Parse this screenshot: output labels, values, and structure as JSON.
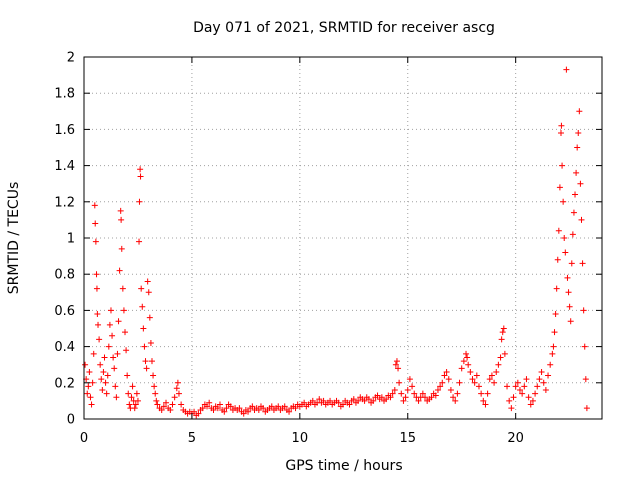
{
  "chart_data": {
    "type": "scatter",
    "title": "Day 071 of 2021, SRMTID for receiver ascg",
    "xlabel": "GPS time / hours",
    "ylabel": "SRMTID / TECUs",
    "xlim": [
      0,
      24
    ],
    "ylim": [
      0,
      2
    ],
    "xticks": [
      0,
      5,
      10,
      15,
      20
    ],
    "yticks": [
      0,
      0.2,
      0.4,
      0.6,
      0.8,
      1,
      1.2,
      1.4,
      1.6,
      1.8,
      2
    ],
    "ytick_labels": [
      "0",
      "0.2",
      "0.4",
      "0.6",
      "0.8",
      "1",
      "1.2",
      "1.4",
      "1.6",
      "1.8",
      "2"
    ],
    "grid": true,
    "marker": "+",
    "series": [
      {
        "name": "SRMTID",
        "color": "#ff0000",
        "points": [
          [
            0.05,
            0.3
          ],
          [
            0.1,
            0.22
          ],
          [
            0.15,
            0.14
          ],
          [
            0.2,
            0.18
          ],
          [
            0.25,
            0.26
          ],
          [
            0.3,
            0.12
          ],
          [
            0.35,
            0.08
          ],
          [
            0.4,
            0.2
          ],
          [
            0.45,
            0.36
          ],
          [
            0.5,
            1.18
          ],
          [
            0.52,
            1.08
          ],
          [
            0.55,
            0.98
          ],
          [
            0.58,
            0.8
          ],
          [
            0.6,
            0.72
          ],
          [
            0.62,
            0.58
          ],
          [
            0.65,
            0.52
          ],
          [
            0.7,
            0.44
          ],
          [
            0.75,
            0.3
          ],
          [
            0.8,
            0.22
          ],
          [
            0.85,
            0.16
          ],
          [
            0.9,
            0.26
          ],
          [
            0.95,
            0.34
          ],
          [
            1.0,
            0.2
          ],
          [
            1.05,
            0.14
          ],
          [
            1.1,
            0.24
          ],
          [
            1.15,
            0.4
          ],
          [
            1.2,
            0.52
          ],
          [
            1.25,
            0.6
          ],
          [
            1.3,
            0.46
          ],
          [
            1.35,
            0.34
          ],
          [
            1.4,
            0.28
          ],
          [
            1.45,
            0.18
          ],
          [
            1.5,
            0.12
          ],
          [
            1.55,
            0.36
          ],
          [
            1.6,
            0.54
          ],
          [
            1.65,
            0.82
          ],
          [
            1.7,
            1.15
          ],
          [
            1.72,
            1.1
          ],
          [
            1.75,
            0.94
          ],
          [
            1.8,
            0.72
          ],
          [
            1.85,
            0.6
          ],
          [
            1.9,
            0.48
          ],
          [
            1.95,
            0.38
          ],
          [
            2.0,
            0.24
          ],
          [
            2.05,
            0.14
          ],
          [
            2.1,
            0.08
          ],
          [
            2.15,
            0.06
          ],
          [
            2.2,
            0.12
          ],
          [
            2.25,
            0.18
          ],
          [
            2.3,
            0.1
          ],
          [
            2.35,
            0.06
          ],
          [
            2.4,
            0.08
          ],
          [
            2.45,
            0.14
          ],
          [
            2.5,
            0.1
          ],
          [
            2.55,
            0.98
          ],
          [
            2.57,
            1.2
          ],
          [
            2.6,
            1.38
          ],
          [
            2.62,
            1.34
          ],
          [
            2.65,
            0.72
          ],
          [
            2.7,
            0.62
          ],
          [
            2.75,
            0.5
          ],
          [
            2.8,
            0.4
          ],
          [
            2.85,
            0.32
          ],
          [
            2.9,
            0.28
          ],
          [
            2.95,
            0.76
          ],
          [
            3.0,
            0.7
          ],
          [
            3.05,
            0.56
          ],
          [
            3.1,
            0.42
          ],
          [
            3.15,
            0.32
          ],
          [
            3.2,
            0.24
          ],
          [
            3.25,
            0.18
          ],
          [
            3.3,
            0.14
          ],
          [
            3.35,
            0.1
          ],
          [
            3.4,
            0.08
          ],
          [
            3.5,
            0.06
          ],
          [
            3.6,
            0.05
          ],
          [
            3.7,
            0.07
          ],
          [
            3.8,
            0.09
          ],
          [
            3.9,
            0.06
          ],
          [
            4.0,
            0.05
          ],
          [
            4.1,
            0.08
          ],
          [
            4.2,
            0.12
          ],
          [
            4.3,
            0.17
          ],
          [
            4.35,
            0.2
          ],
          [
            4.4,
            0.14
          ],
          [
            4.5,
            0.08
          ],
          [
            4.6,
            0.05
          ],
          [
            4.7,
            0.04
          ],
          [
            4.8,
            0.03
          ],
          [
            4.9,
            0.04
          ],
          [
            5.0,
            0.03
          ],
          [
            5.1,
            0.04
          ],
          [
            5.2,
            0.02
          ],
          [
            5.3,
            0.03
          ],
          [
            5.4,
            0.05
          ],
          [
            5.5,
            0.06
          ],
          [
            5.6,
            0.08
          ],
          [
            5.7,
            0.07
          ],
          [
            5.8,
            0.09
          ],
          [
            5.9,
            0.06
          ],
          [
            6.0,
            0.05
          ],
          [
            6.1,
            0.07
          ],
          [
            6.2,
            0.06
          ],
          [
            6.3,
            0.08
          ],
          [
            6.4,
            0.05
          ],
          [
            6.5,
            0.04
          ],
          [
            6.6,
            0.06
          ],
          [
            6.7,
            0.08
          ],
          [
            6.8,
            0.07
          ],
          [
            6.9,
            0.05
          ],
          [
            7.0,
            0.06
          ],
          [
            7.1,
            0.05
          ],
          [
            7.2,
            0.06
          ],
          [
            7.3,
            0.04
          ],
          [
            7.4,
            0.03
          ],
          [
            7.5,
            0.05
          ],
          [
            7.6,
            0.04
          ],
          [
            7.7,
            0.06
          ],
          [
            7.8,
            0.07
          ],
          [
            7.9,
            0.05
          ],
          [
            8.0,
            0.06
          ],
          [
            8.1,
            0.05
          ],
          [
            8.2,
            0.07
          ],
          [
            8.3,
            0.06
          ],
          [
            8.4,
            0.04
          ],
          [
            8.5,
            0.05
          ],
          [
            8.6,
            0.06
          ],
          [
            8.7,
            0.07
          ],
          [
            8.8,
            0.05
          ],
          [
            8.9,
            0.06
          ],
          [
            9.0,
            0.07
          ],
          [
            9.1,
            0.05
          ],
          [
            9.2,
            0.06
          ],
          [
            9.3,
            0.07
          ],
          [
            9.4,
            0.05
          ],
          [
            9.5,
            0.04
          ],
          [
            9.6,
            0.06
          ],
          [
            9.7,
            0.07
          ],
          [
            9.8,
            0.06
          ],
          [
            9.9,
            0.08
          ],
          [
            10.0,
            0.07
          ],
          [
            10.1,
            0.08
          ],
          [
            10.2,
            0.09
          ],
          [
            10.3,
            0.07
          ],
          [
            10.4,
            0.08
          ],
          [
            10.5,
            0.09
          ],
          [
            10.6,
            0.1
          ],
          [
            10.7,
            0.08
          ],
          [
            10.8,
            0.09
          ],
          [
            10.9,
            0.11
          ],
          [
            11.0,
            0.09
          ],
          [
            11.1,
            0.1
          ],
          [
            11.2,
            0.08
          ],
          [
            11.3,
            0.09
          ],
          [
            11.4,
            0.1
          ],
          [
            11.5,
            0.08
          ],
          [
            11.6,
            0.09
          ],
          [
            11.7,
            0.1
          ],
          [
            11.8,
            0.09
          ],
          [
            11.9,
            0.07
          ],
          [
            12.0,
            0.08
          ],
          [
            12.1,
            0.1
          ],
          [
            12.2,
            0.09
          ],
          [
            12.3,
            0.08
          ],
          [
            12.4,
            0.1
          ],
          [
            12.5,
            0.11
          ],
          [
            12.6,
            0.09
          ],
          [
            12.7,
            0.1
          ],
          [
            12.8,
            0.12
          ],
          [
            12.9,
            0.11
          ],
          [
            13.0,
            0.1
          ],
          [
            13.1,
            0.12
          ],
          [
            13.2,
            0.11
          ],
          [
            13.3,
            0.09
          ],
          [
            13.4,
            0.1
          ],
          [
            13.5,
            0.12
          ],
          [
            13.6,
            0.13
          ],
          [
            13.7,
            0.11
          ],
          [
            13.8,
            0.12
          ],
          [
            13.9,
            0.1
          ],
          [
            14.0,
            0.11
          ],
          [
            14.1,
            0.13
          ],
          [
            14.2,
            0.12
          ],
          [
            14.3,
            0.14
          ],
          [
            14.4,
            0.16
          ],
          [
            14.45,
            0.3
          ],
          [
            14.5,
            0.32
          ],
          [
            14.55,
            0.28
          ],
          [
            14.6,
            0.2
          ],
          [
            14.7,
            0.14
          ],
          [
            14.8,
            0.1
          ],
          [
            14.9,
            0.12
          ],
          [
            15.0,
            0.16
          ],
          [
            15.1,
            0.22
          ],
          [
            15.2,
            0.18
          ],
          [
            15.3,
            0.14
          ],
          [
            15.4,
            0.12
          ],
          [
            15.5,
            0.1
          ],
          [
            15.6,
            0.12
          ],
          [
            15.7,
            0.14
          ],
          [
            15.8,
            0.12
          ],
          [
            15.9,
            0.1
          ],
          [
            16.0,
            0.11
          ],
          [
            16.1,
            0.12
          ],
          [
            16.2,
            0.14
          ],
          [
            16.3,
            0.13
          ],
          [
            16.4,
            0.16
          ],
          [
            16.5,
            0.18
          ],
          [
            16.6,
            0.2
          ],
          [
            16.7,
            0.24
          ],
          [
            16.8,
            0.26
          ],
          [
            16.9,
            0.22
          ],
          [
            17.0,
            0.16
          ],
          [
            17.1,
            0.12
          ],
          [
            17.2,
            0.1
          ],
          [
            17.3,
            0.14
          ],
          [
            17.4,
            0.2
          ],
          [
            17.5,
            0.28
          ],
          [
            17.6,
            0.32
          ],
          [
            17.7,
            0.36
          ],
          [
            17.75,
            0.34
          ],
          [
            17.8,
            0.3
          ],
          [
            17.9,
            0.26
          ],
          [
            18.0,
            0.22
          ],
          [
            18.1,
            0.2
          ],
          [
            18.2,
            0.24
          ],
          [
            18.3,
            0.18
          ],
          [
            18.4,
            0.14
          ],
          [
            18.5,
            0.1
          ],
          [
            18.6,
            0.08
          ],
          [
            18.7,
            0.14
          ],
          [
            18.8,
            0.22
          ],
          [
            18.9,
            0.24
          ],
          [
            19.0,
            0.2
          ],
          [
            19.1,
            0.26
          ],
          [
            19.2,
            0.3
          ],
          [
            19.3,
            0.34
          ],
          [
            19.35,
            0.44
          ],
          [
            19.4,
            0.48
          ],
          [
            19.45,
            0.5
          ],
          [
            19.5,
            0.36
          ],
          [
            19.6,
            0.18
          ],
          [
            19.7,
            0.1
          ],
          [
            19.8,
            0.06
          ],
          [
            19.9,
            0.12
          ],
          [
            20.0,
            0.18
          ],
          [
            20.1,
            0.2
          ],
          [
            20.2,
            0.16
          ],
          [
            20.3,
            0.14
          ],
          [
            20.4,
            0.18
          ],
          [
            20.5,
            0.22
          ],
          [
            20.6,
            0.12
          ],
          [
            20.7,
            0.08
          ],
          [
            20.8,
            0.1
          ],
          [
            20.9,
            0.14
          ],
          [
            21.0,
            0.18
          ],
          [
            21.1,
            0.22
          ],
          [
            21.2,
            0.26
          ],
          [
            21.3,
            0.2
          ],
          [
            21.4,
            0.16
          ],
          [
            21.5,
            0.24
          ],
          [
            21.6,
            0.3
          ],
          [
            21.7,
            0.36
          ],
          [
            21.75,
            0.4
          ],
          [
            21.8,
            0.48
          ],
          [
            21.85,
            0.58
          ],
          [
            21.9,
            0.72
          ],
          [
            21.95,
            0.88
          ],
          [
            22.0,
            1.04
          ],
          [
            22.05,
            1.28
          ],
          [
            22.1,
            1.58
          ],
          [
            22.12,
            1.62
          ],
          [
            22.15,
            1.4
          ],
          [
            22.2,
            1.2
          ],
          [
            22.25,
            1.0
          ],
          [
            22.3,
            0.92
          ],
          [
            22.35,
            1.93
          ],
          [
            22.4,
            0.78
          ],
          [
            22.45,
            0.7
          ],
          [
            22.5,
            0.62
          ],
          [
            22.55,
            0.54
          ],
          [
            22.6,
            0.86
          ],
          [
            22.65,
            1.02
          ],
          [
            22.7,
            1.14
          ],
          [
            22.75,
            1.24
          ],
          [
            22.8,
            1.36
          ],
          [
            22.85,
            1.5
          ],
          [
            22.9,
            1.58
          ],
          [
            22.95,
            1.7
          ],
          [
            23.0,
            1.3
          ],
          [
            23.05,
            1.1
          ],
          [
            23.1,
            0.86
          ],
          [
            23.15,
            0.6
          ],
          [
            23.2,
            0.4
          ],
          [
            23.25,
            0.22
          ],
          [
            23.3,
            0.06
          ]
        ]
      }
    ]
  }
}
